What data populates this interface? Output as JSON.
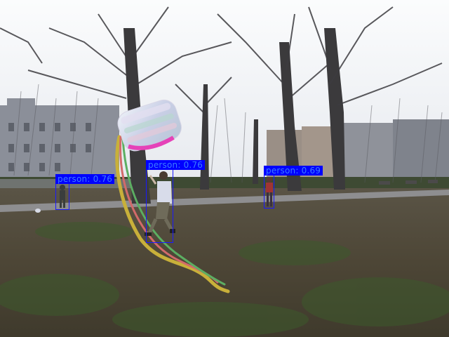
{
  "detections": [
    {
      "label": "person: 0.76",
      "color": "#0000ff"
    },
    {
      "label": "person: 0.76",
      "color": "#0000ff"
    },
    {
      "label": "person: 0.69",
      "color": "#0000ff"
    }
  ],
  "palette": {
    "sky": "#f4f6f8",
    "grass": "#4f4a3c",
    "path": "#8e8e90",
    "kite": "#d9d6ea",
    "box": "#0000ff"
  }
}
